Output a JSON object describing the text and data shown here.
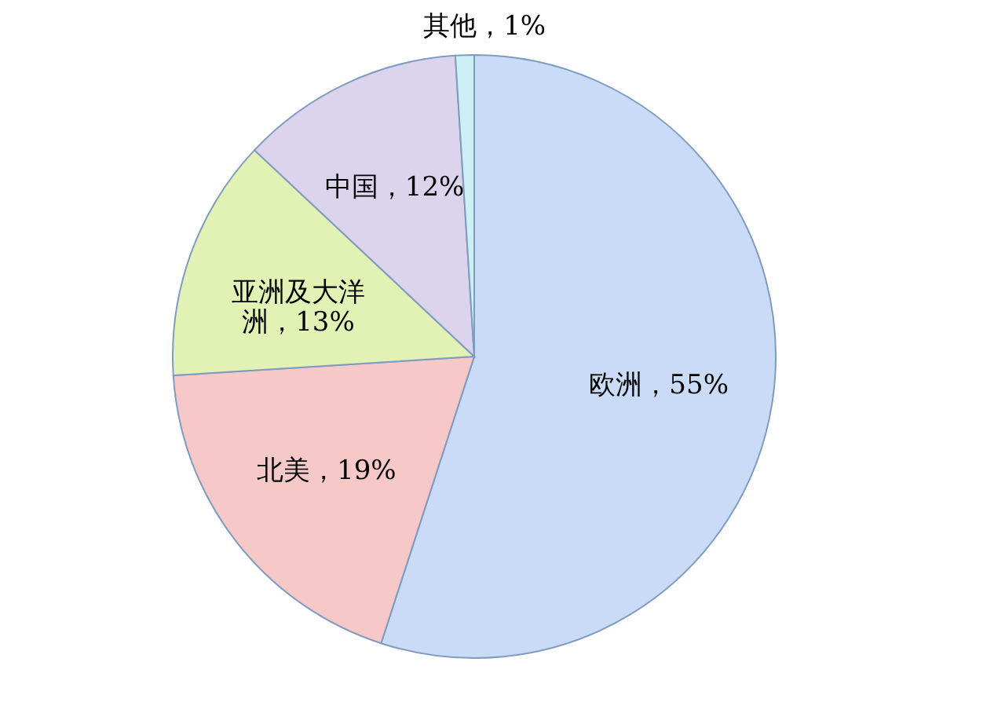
{
  "chart_data": {
    "type": "pie",
    "categories": [
      "欧洲",
      "北美",
      "亚洲及大洋洲",
      "中国",
      "其他"
    ],
    "values": [
      55,
      19,
      13,
      12,
      1
    ],
    "colors": [
      "#c9dbf7",
      "#f6c9c8",
      "#e2f2b5",
      "#dcd3ec",
      "#cdeff6"
    ],
    "value_labels": [
      "，55%",
      "，19%",
      "，13%",
      "，12%",
      "，1%"
    ],
    "legend": false
  }
}
